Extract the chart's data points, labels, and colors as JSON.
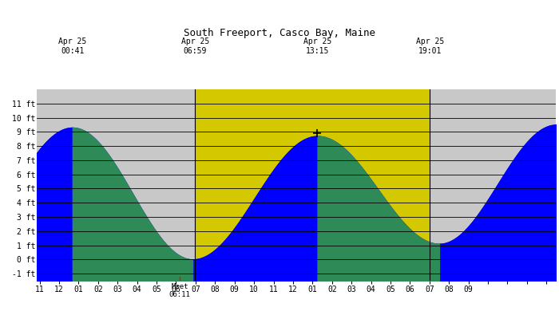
{
  "title": "South Freeport, Casco Bay, Maine",
  "bg_gray": "#c8c8c8",
  "bg_yellow": "#d4c800",
  "tide_blue": "#0000ff",
  "tide_green": "#2e8b57",
  "x_start": -1.167,
  "x_end": 25.5,
  "y_min": -1.5,
  "y_max": 12.5,
  "plot_y_min": -1.5,
  "plot_y_max": 12.0,
  "yticks": [
    -1,
    0,
    1,
    2,
    3,
    4,
    5,
    6,
    7,
    8,
    9,
    10,
    11
  ],
  "ytick_labels": [
    "-1 ft",
    "0 ft",
    "1 ft",
    "2 ft",
    "3 ft",
    "4 ft",
    "5 ft",
    "6 ft",
    "7 ft",
    "8 ft",
    "9 ft",
    "10 ft",
    "11 ft"
  ],
  "sunrise_hour": 6.983,
  "sunset_hour": 19.017,
  "tide_times": [
    0.683,
    6.85,
    13.25,
    19.5,
    25.5
  ],
  "tide_heights": [
    9.3,
    0.0,
    8.7,
    1.1,
    9.5
  ],
  "tide_prev_time": -5.5,
  "tide_prev_height": 0.3,
  "moonset_hour": 6.183,
  "moonset_label": "Mset\n06:11",
  "marker_hour": 13.25,
  "marker_ft": 8.7,
  "ann_high1": {
    "text": "Apr 25\n00:41",
    "hour": 0.683
  },
  "ann_sunrise": {
    "text": "Apr 25\n06:59",
    "hour": 6.983
  },
  "ann_high2": {
    "text": "Apr 25\n13:15",
    "hour": 13.25
  },
  "ann_sunset": {
    "text": "Apr 25\n19:01",
    "hour": 19.017
  },
  "xtick_hours": [
    -1,
    0,
    1,
    2,
    3,
    4,
    5,
    6,
    7,
    8,
    9,
    10,
    11,
    12,
    13,
    14,
    15,
    16,
    17,
    18,
    19,
    20,
    21,
    22,
    23,
    24,
    25
  ],
  "xtick_labels": [
    "11",
    "12",
    "01",
    "02",
    "03",
    "04",
    "05",
    "06",
    "07",
    "08",
    "09",
    "10",
    "11",
    "12",
    "01",
    "02",
    "03",
    "04",
    "05",
    "06",
    "07",
    "08",
    "09",
    "",
    "",
    "",
    ""
  ]
}
